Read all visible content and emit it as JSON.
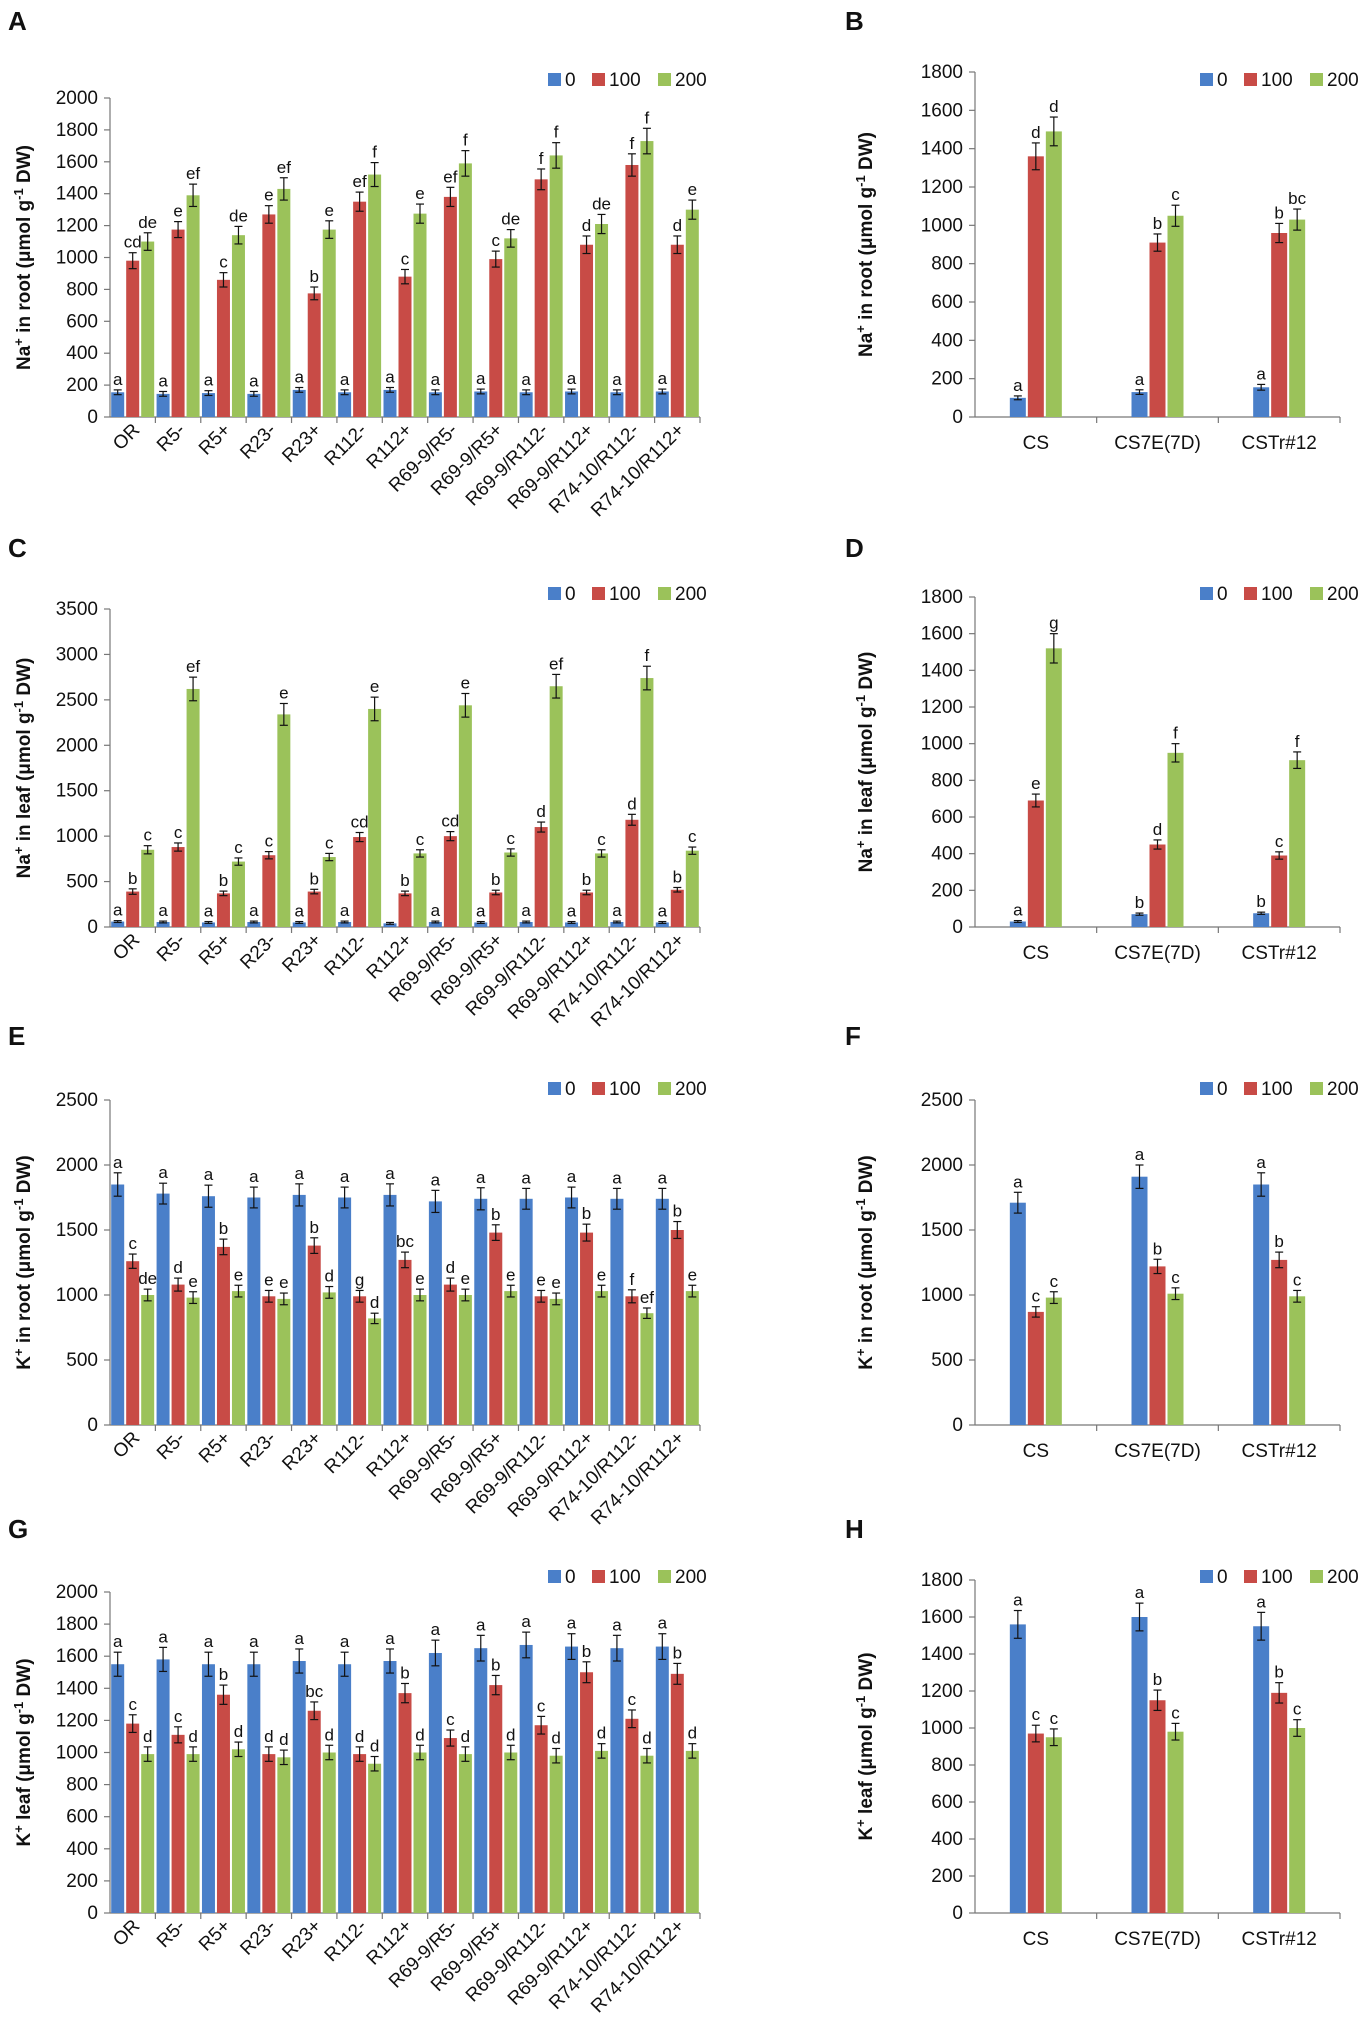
{
  "figure": {
    "series_colors": {
      "0": "#4a7fc9",
      "100": "#c84b46",
      "200": "#9bc25a"
    },
    "legend_labels": [
      "0",
      "100",
      "200"
    ]
  },
  "chart_data": [
    {
      "panel": "A",
      "type": "bar",
      "ylabel": "Na+ in root (μmol g-1 DW)",
      "ylim": [
        0,
        2000
      ],
      "yticks": [
        0,
        200,
        400,
        600,
        800,
        1000,
        1200,
        1400,
        1600,
        1800,
        2000
      ],
      "categories": [
        "OR",
        "R5-",
        "R5+",
        "R23-",
        "R23+",
        "R112-",
        "R112+",
        "R69-9/R5-",
        "R69-9/R5+",
        "R69-9/R112-",
        "R69-9/R112+",
        "R74-10/R112-",
        "R74-10/R112+"
      ],
      "series": [
        {
          "name": "0",
          "values": [
            155,
            145,
            150,
            145,
            170,
            155,
            170,
            155,
            160,
            155,
            160,
            155,
            160
          ],
          "errors": [
            15,
            15,
            15,
            15,
            15,
            15,
            15,
            15,
            15,
            15,
            15,
            15,
            15
          ],
          "labels": [
            "a",
            "a",
            "a",
            "a",
            "a",
            "a",
            "a",
            "a",
            "a",
            "a",
            "a",
            "a",
            "a"
          ]
        },
        {
          "name": "100",
          "values": [
            980,
            1175,
            860,
            1270,
            775,
            1350,
            880,
            1380,
            990,
            1490,
            1080,
            1580,
            1080
          ],
          "errors": [
            50,
            50,
            45,
            55,
            40,
            60,
            45,
            60,
            50,
            65,
            55,
            70,
            55
          ],
          "labels": [
            "cd",
            "e",
            "c",
            "e",
            "b",
            "ef",
            "c",
            "ef",
            "c",
            "f",
            "d",
            "f",
            "d"
          ]
        },
        {
          "name": "200",
          "values": [
            1100,
            1390,
            1140,
            1430,
            1175,
            1520,
            1275,
            1590,
            1120,
            1640,
            1210,
            1730,
            1300
          ],
          "errors": [
            55,
            70,
            55,
            70,
            55,
            75,
            60,
            80,
            55,
            80,
            60,
            80,
            60
          ],
          "labels": [
            "de",
            "ef",
            "de",
            "ef",
            "e",
            "f",
            "e",
            "f",
            "de",
            "f",
            "de",
            "f",
            "e"
          ]
        }
      ]
    },
    {
      "panel": "B",
      "type": "bar",
      "ylabel": "Na+ in root (μmol g-1 DW)",
      "ylim": [
        0,
        1800
      ],
      "yticks": [
        0,
        200,
        400,
        600,
        800,
        1000,
        1200,
        1400,
        1600,
        1800
      ],
      "categories": [
        "CS",
        "CS7E(7D)",
        "CSTr#12"
      ],
      "series": [
        {
          "name": "0",
          "values": [
            100,
            130,
            155
          ],
          "errors": [
            10,
            12,
            15
          ],
          "labels": [
            "a",
            "a",
            "a"
          ]
        },
        {
          "name": "100",
          "values": [
            1360,
            910,
            960
          ],
          "errors": [
            70,
            45,
            50
          ],
          "labels": [
            "d",
            "b",
            "b"
          ]
        },
        {
          "name": "200",
          "values": [
            1490,
            1050,
            1030
          ],
          "errors": [
            75,
            55,
            55
          ],
          "labels": [
            "d",
            "c",
            "bc"
          ]
        }
      ]
    },
    {
      "panel": "C",
      "type": "bar",
      "ylabel": "Na+ in leaf (μmol g-1 DW)",
      "ylim": [
        0,
        3500
      ],
      "yticks": [
        0,
        500,
        1000,
        1500,
        2000,
        2500,
        3000,
        3500
      ],
      "categories": [
        "OR",
        "R5-",
        "R5+",
        "R23-",
        "R23+",
        "R112-",
        "R112+",
        "R69-9/R5-",
        "R69-9/R5+",
        "R69-9/R112-",
        "R69-9/R112+",
        "R74-10/R112-",
        "R74-10/R112+"
      ],
      "series": [
        {
          "name": "0",
          "values": [
            60,
            55,
            50,
            55,
            50,
            55,
            40,
            55,
            50,
            55,
            50,
            55,
            50
          ],
          "errors": [
            10,
            10,
            10,
            10,
            10,
            10,
            10,
            10,
            10,
            10,
            10,
            10,
            10
          ],
          "labels": [
            "a",
            "a",
            "a",
            "a",
            "a",
            "a",
            "",
            "a",
            "a",
            "a",
            "a",
            "a",
            "a"
          ]
        },
        {
          "name": "100",
          "values": [
            390,
            880,
            370,
            790,
            390,
            990,
            370,
            1000,
            380,
            1100,
            380,
            1180,
            410
          ],
          "errors": [
            30,
            45,
            25,
            40,
            25,
            50,
            25,
            50,
            25,
            55,
            25,
            60,
            25
          ],
          "labels": [
            "b",
            "c",
            "b",
            "c",
            "b",
            "cd",
            "b",
            "cd",
            "b",
            "d",
            "b",
            "d",
            "b"
          ]
        },
        {
          "name": "200",
          "values": [
            850,
            2620,
            720,
            2340,
            770,
            2400,
            810,
            2440,
            820,
            2650,
            810,
            2740,
            840
          ],
          "errors": [
            45,
            130,
            40,
            120,
            40,
            130,
            40,
            130,
            40,
            130,
            40,
            130,
            40
          ],
          "labels": [
            "c",
            "ef",
            "c",
            "e",
            "c",
            "e",
            "c",
            "e",
            "c",
            "ef",
            "c",
            "f",
            "c"
          ]
        }
      ]
    },
    {
      "panel": "D",
      "type": "bar",
      "ylabel": "Na+ in leaf (μmol g-1 DW)",
      "ylim": [
        0,
        1800
      ],
      "yticks": [
        0,
        200,
        400,
        600,
        800,
        1000,
        1200,
        1400,
        1600,
        1800
      ],
      "categories": [
        "CS",
        "CS7E(7D)",
        "CSTr#12"
      ],
      "series": [
        {
          "name": "0",
          "values": [
            30,
            70,
            75
          ],
          "errors": [
            5,
            6,
            6
          ],
          "labels": [
            "a",
            "b",
            "b"
          ]
        },
        {
          "name": "100",
          "values": [
            690,
            450,
            390
          ],
          "errors": [
            35,
            25,
            20
          ],
          "labels": [
            "e",
            "d",
            "c"
          ]
        },
        {
          "name": "200",
          "values": [
            1520,
            950,
            910
          ],
          "errors": [
            80,
            50,
            45
          ],
          "labels": [
            "g",
            "f",
            "f"
          ]
        }
      ]
    },
    {
      "panel": "E",
      "type": "bar",
      "ylabel": "K+ in root (μmol g-1 DW)",
      "ylim": [
        0,
        2500
      ],
      "yticks": [
        0,
        500,
        1000,
        1500,
        2000,
        2500
      ],
      "categories": [
        "OR",
        "R5-",
        "R5+",
        "R23-",
        "R23+",
        "R112-",
        "R112+",
        "R69-9/R5-",
        "R69-9/R5+",
        "R69-9/R112-",
        "R69-9/R112+",
        "R74-10/R112-",
        "R74-10/R112+"
      ],
      "series": [
        {
          "name": "0",
          "values": [
            1850,
            1780,
            1760,
            1750,
            1770,
            1750,
            1770,
            1720,
            1740,
            1740,
            1750,
            1740,
            1740
          ],
          "errors": [
            90,
            80,
            85,
            80,
            85,
            80,
            85,
            85,
            85,
            80,
            80,
            80,
            80
          ],
          "labels": [
            "a",
            "a",
            "a",
            "a",
            "a",
            "a",
            "a",
            "a",
            "a",
            "a",
            "a",
            "a",
            "a"
          ]
        },
        {
          "name": "100",
          "values": [
            1260,
            1080,
            1370,
            990,
            1380,
            990,
            1270,
            1080,
            1480,
            990,
            1480,
            990,
            1500
          ],
          "errors": [
            55,
            50,
            60,
            45,
            60,
            45,
            60,
            50,
            60,
            45,
            65,
            50,
            65
          ],
          "labels": [
            "c",
            "d",
            "b",
            "e",
            "b",
            "g",
            "bc",
            "d",
            "b",
            "e",
            "b",
            "f",
            "b"
          ]
        },
        {
          "name": "200",
          "values": [
            1000,
            980,
            1030,
            970,
            1020,
            820,
            1000,
            1000,
            1030,
            970,
            1030,
            860,
            1030
          ],
          "errors": [
            45,
            45,
            45,
            45,
            45,
            40,
            45,
            45,
            45,
            45,
            45,
            40,
            45
          ],
          "labels": [
            "de",
            "e",
            "e",
            "e",
            "d",
            "d",
            "e",
            "e",
            "e",
            "e",
            "e",
            "ef",
            "e"
          ]
        }
      ]
    },
    {
      "panel": "F",
      "type": "bar",
      "ylabel": "K+ in root (μmol g-1 DW)",
      "ylim": [
        0,
        2500
      ],
      "yticks": [
        0,
        500,
        1000,
        1500,
        2000,
        2500
      ],
      "categories": [
        "CS",
        "CS7E(7D)",
        "CSTr#12"
      ],
      "series": [
        {
          "name": "0",
          "values": [
            1710,
            1910,
            1850
          ],
          "errors": [
            80,
            90,
            90
          ],
          "labels": [
            "a",
            "a",
            "a"
          ]
        },
        {
          "name": "100",
          "values": [
            870,
            1220,
            1270
          ],
          "errors": [
            40,
            55,
            60
          ],
          "labels": [
            "c",
            "b",
            "b"
          ]
        },
        {
          "name": "200",
          "values": [
            980,
            1010,
            990
          ],
          "errors": [
            45,
            45,
            45
          ],
          "labels": [
            "c",
            "c",
            "c"
          ]
        }
      ]
    },
    {
      "panel": "G",
      "type": "bar",
      "ylabel": "K+ leaf (μmol g-1 DW)",
      "ylim": [
        0,
        2000
      ],
      "yticks": [
        0,
        200,
        400,
        600,
        800,
        1000,
        1200,
        1400,
        1600,
        1800,
        2000
      ],
      "categories": [
        "OR",
        "R5-",
        "R5+",
        "R23-",
        "R23+",
        "R112-",
        "R112+",
        "R69-9/R5-",
        "R69-9/R5+",
        "R69-9/R112-",
        "R69-9/R112+",
        "R74-10/R112-",
        "R74-10/R112+"
      ],
      "series": [
        {
          "name": "0",
          "values": [
            1550,
            1580,
            1550,
            1550,
            1570,
            1550,
            1570,
            1620,
            1650,
            1670,
            1660,
            1650,
            1660
          ],
          "errors": [
            75,
            75,
            75,
            75,
            75,
            75,
            75,
            80,
            80,
            80,
            80,
            80,
            80
          ],
          "labels": [
            "a",
            "a",
            "a",
            "a",
            "a",
            "a",
            "a",
            "a",
            "a",
            "a",
            "a",
            "a",
            "a"
          ]
        },
        {
          "name": "100",
          "values": [
            1180,
            1110,
            1360,
            990,
            1260,
            990,
            1370,
            1090,
            1420,
            1170,
            1500,
            1210,
            1490
          ],
          "errors": [
            55,
            50,
            60,
            45,
            55,
            45,
            60,
            50,
            60,
            55,
            65,
            55,
            65
          ],
          "labels": [
            "c",
            "c",
            "b",
            "d",
            "bc",
            "d",
            "b",
            "c",
            "b",
            "c",
            "b",
            "c",
            "b"
          ]
        },
        {
          "name": "200",
          "values": [
            990,
            990,
            1020,
            970,
            1000,
            930,
            1000,
            990,
            1000,
            980,
            1010,
            980,
            1010
          ],
          "errors": [
            45,
            45,
            45,
            45,
            45,
            45,
            45,
            45,
            45,
            45,
            45,
            45,
            45
          ],
          "labels": [
            "d",
            "d",
            "d",
            "d",
            "d",
            "d",
            "d",
            "d",
            "d",
            "d",
            "d",
            "d",
            "d"
          ]
        }
      ]
    },
    {
      "panel": "H",
      "type": "bar",
      "ylabel": "K+ leaf (μmol g-1 DW)",
      "ylim": [
        0,
        1800
      ],
      "yticks": [
        0,
        200,
        400,
        600,
        800,
        1000,
        1200,
        1400,
        1600,
        1800
      ],
      "categories": [
        "CS",
        "CS7E(7D)",
        "CSTr#12"
      ],
      "series": [
        {
          "name": "0",
          "values": [
            1560,
            1600,
            1550
          ],
          "errors": [
            75,
            75,
            75
          ],
          "labels": [
            "a",
            "a",
            "a"
          ]
        },
        {
          "name": "100",
          "values": [
            970,
            1150,
            1190
          ],
          "errors": [
            45,
            55,
            55
          ],
          "labels": [
            "c",
            "b",
            "b"
          ]
        },
        {
          "name": "200",
          "values": [
            950,
            980,
            1000
          ],
          "errors": [
            45,
            45,
            45
          ],
          "labels": [
            "c",
            "c",
            "c"
          ]
        }
      ]
    }
  ]
}
